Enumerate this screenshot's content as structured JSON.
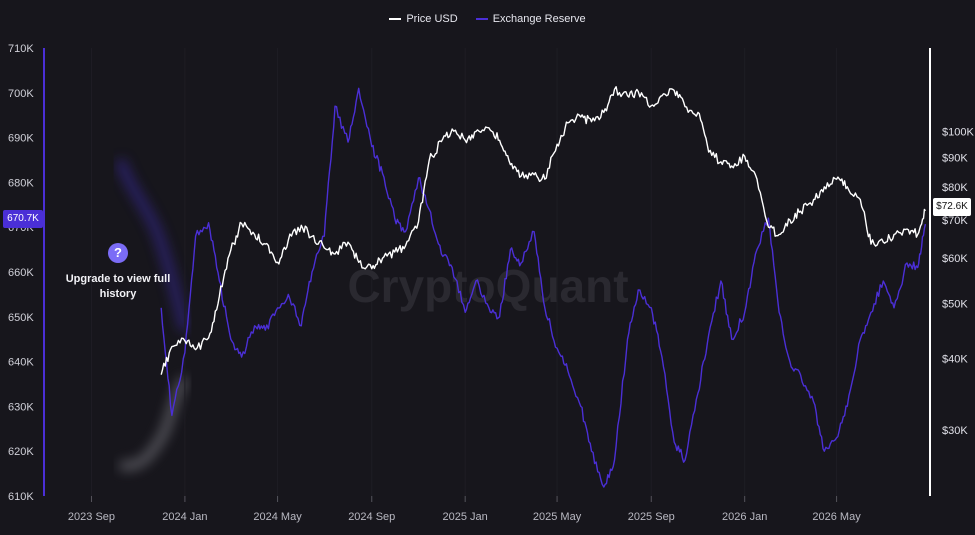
{
  "legend": {
    "items": [
      {
        "label": "Price USD",
        "color": "#ffffff"
      },
      {
        "label": "Exchange Reserve",
        "color": "#4b2fd6"
      }
    ]
  },
  "overlay": {
    "upgrade_text": "Upgrade to view full history",
    "icon": "question-icon",
    "icon_glyph": "?"
  },
  "watermark": "CryptoQuant",
  "current_values": {
    "left": "670.7K",
    "right": "$72.6K"
  },
  "colors": {
    "price": "#ffffff",
    "reserve": "#4b2fd6",
    "background": "#17161c"
  },
  "chart_data": {
    "type": "line",
    "title": "",
    "x_tick_labels": [
      "2023 Sep",
      "2024 Jan",
      "2024 May",
      "2024 Sep",
      "2025 Jan",
      "2025 May",
      "2025 Sep",
      "2026 Jan",
      "2026 May"
    ],
    "left_axis": {
      "tick_labels": [
        "710K",
        "700K",
        "690K",
        "680K",
        "670K",
        "660K",
        "650K",
        "640K",
        "630K",
        "620K",
        "610K"
      ],
      "tick_values": [
        710000,
        700000,
        690000,
        680000,
        670000,
        660000,
        650000,
        640000,
        630000,
        620000,
        610000
      ],
      "range": [
        610000,
        710000
      ]
    },
    "right_axis": {
      "scale": "log",
      "tick_labels": [
        "$100K",
        "$90K",
        "$80K",
        "$70K",
        "$60K",
        "$50K",
        "$40K",
        "$30K"
      ],
      "tick_values": [
        100000,
        90000,
        80000,
        70000,
        60000,
        50000,
        40000,
        30000
      ],
      "range": [
        23000,
        140000
      ]
    },
    "series": [
      {
        "name": "Price USD",
        "axis": "right",
        "color": "#ffffff",
        "x": [
          "2023-12-01",
          "2023-12-15",
          "2024-01-01",
          "2024-01-15",
          "2024-02-01",
          "2024-02-15",
          "2024-03-01",
          "2024-03-15",
          "2024-04-01",
          "2024-04-15",
          "2024-05-01",
          "2024-05-15",
          "2024-06-01",
          "2024-06-15",
          "2024-07-01",
          "2024-07-15",
          "2024-08-01",
          "2024-08-15",
          "2024-09-01",
          "2024-09-15",
          "2024-10-01",
          "2024-10-15",
          "2024-11-01",
          "2024-11-15",
          "2024-12-01",
          "2024-12-15",
          "2025-01-01",
          "2025-01-15",
          "2025-02-01",
          "2025-02-15",
          "2025-03-01",
          "2025-03-15",
          "2025-04-01",
          "2025-04-15",
          "2025-05-01",
          "2025-05-15",
          "2025-06-01",
          "2025-06-15",
          "2025-07-01",
          "2025-07-15",
          "2025-08-01",
          "2025-08-15",
          "2025-09-01",
          "2025-09-15",
          "2025-10-01",
          "2025-10-15",
          "2025-11-01",
          "2025-11-15",
          "2025-12-01",
          "2025-12-15",
          "2026-01-01",
          "2026-01-15",
          "2026-02-01",
          "2026-02-15",
          "2026-03-01",
          "2026-03-15",
          "2026-04-01",
          "2026-04-15",
          "2026-05-01",
          "2026-05-15",
          "2026-06-01",
          "2026-06-15",
          "2026-07-01",
          "2026-07-15",
          "2026-08-01",
          "2026-08-15",
          "2026-08-25"
        ],
        "y": [
          37500,
          42000,
          43000,
          41500,
          43500,
          51500,
          62000,
          69000,
          66000,
          63500,
          59000,
          64500,
          68500,
          65500,
          62500,
          61000,
          64000,
          59000,
          57500,
          60000,
          61500,
          63000,
          69500,
          89000,
          96000,
          101000,
          96500,
          100000,
          101500,
          96500,
          87500,
          83500,
          84000,
          82500,
          95000,
          103500,
          106000,
          104000,
          108000,
          118500,
          115500,
          117500,
          111000,
          115500,
          118000,
          110500,
          108000,
          92000,
          88500,
          87000,
          90500,
          84000,
          68000,
          66000,
          70000,
          72500,
          76000,
          80000,
          82500,
          80000,
          76000,
          63500,
          64000,
          66000,
          67500,
          66000,
          72600
        ]
      },
      {
        "name": "Exchange Reserve",
        "axis": "left",
        "color": "#4b2fd6",
        "x": [
          "2023-12-01",
          "2023-12-15",
          "2024-01-01",
          "2024-01-15",
          "2024-02-01",
          "2024-02-15",
          "2024-03-01",
          "2024-03-15",
          "2024-04-01",
          "2024-04-15",
          "2024-05-01",
          "2024-05-15",
          "2024-06-01",
          "2024-06-15",
          "2024-07-01",
          "2024-07-15",
          "2024-08-01",
          "2024-08-15",
          "2024-09-01",
          "2024-09-15",
          "2024-10-01",
          "2024-10-15",
          "2024-11-01",
          "2024-11-15",
          "2024-12-01",
          "2024-12-15",
          "2025-01-01",
          "2025-01-15",
          "2025-02-01",
          "2025-02-15",
          "2025-03-01",
          "2025-03-15",
          "2025-04-01",
          "2025-04-15",
          "2025-05-01",
          "2025-05-15",
          "2025-06-01",
          "2025-06-15",
          "2025-07-01",
          "2025-07-15",
          "2025-08-01",
          "2025-08-15",
          "2025-09-01",
          "2025-09-15",
          "2025-10-01",
          "2025-10-15",
          "2025-11-01",
          "2025-11-15",
          "2025-12-01",
          "2025-12-15",
          "2026-01-01",
          "2026-01-15",
          "2026-02-01",
          "2026-02-15",
          "2026-03-01",
          "2026-03-15",
          "2026-04-01",
          "2026-04-15",
          "2026-05-01",
          "2026-05-15",
          "2026-06-01",
          "2026-06-15",
          "2026-07-01",
          "2026-07-15",
          "2026-08-01",
          "2026-08-15",
          "2026-08-25"
        ],
        "y": [
          652000,
          628000,
          642000,
          668000,
          671000,
          658000,
          645000,
          641000,
          648000,
          647000,
          652000,
          655000,
          648000,
          660000,
          668000,
          697000,
          689000,
          701000,
          688000,
          682000,
          672000,
          669000,
          681000,
          674000,
          664000,
          661000,
          651000,
          658000,
          652000,
          650000,
          665000,
          662000,
          669000,
          652000,
          643000,
          638000,
          630000,
          620000,
          612000,
          618000,
          645000,
          656000,
          652000,
          641000,
          622000,
          618000,
          633000,
          646000,
          658000,
          645000,
          651000,
          664000,
          672000,
          651000,
          640000,
          637000,
          631000,
          620000,
          623000,
          630000,
          645000,
          651000,
          658000,
          652000,
          662000,
          661000,
          670700
        ]
      }
    ]
  }
}
